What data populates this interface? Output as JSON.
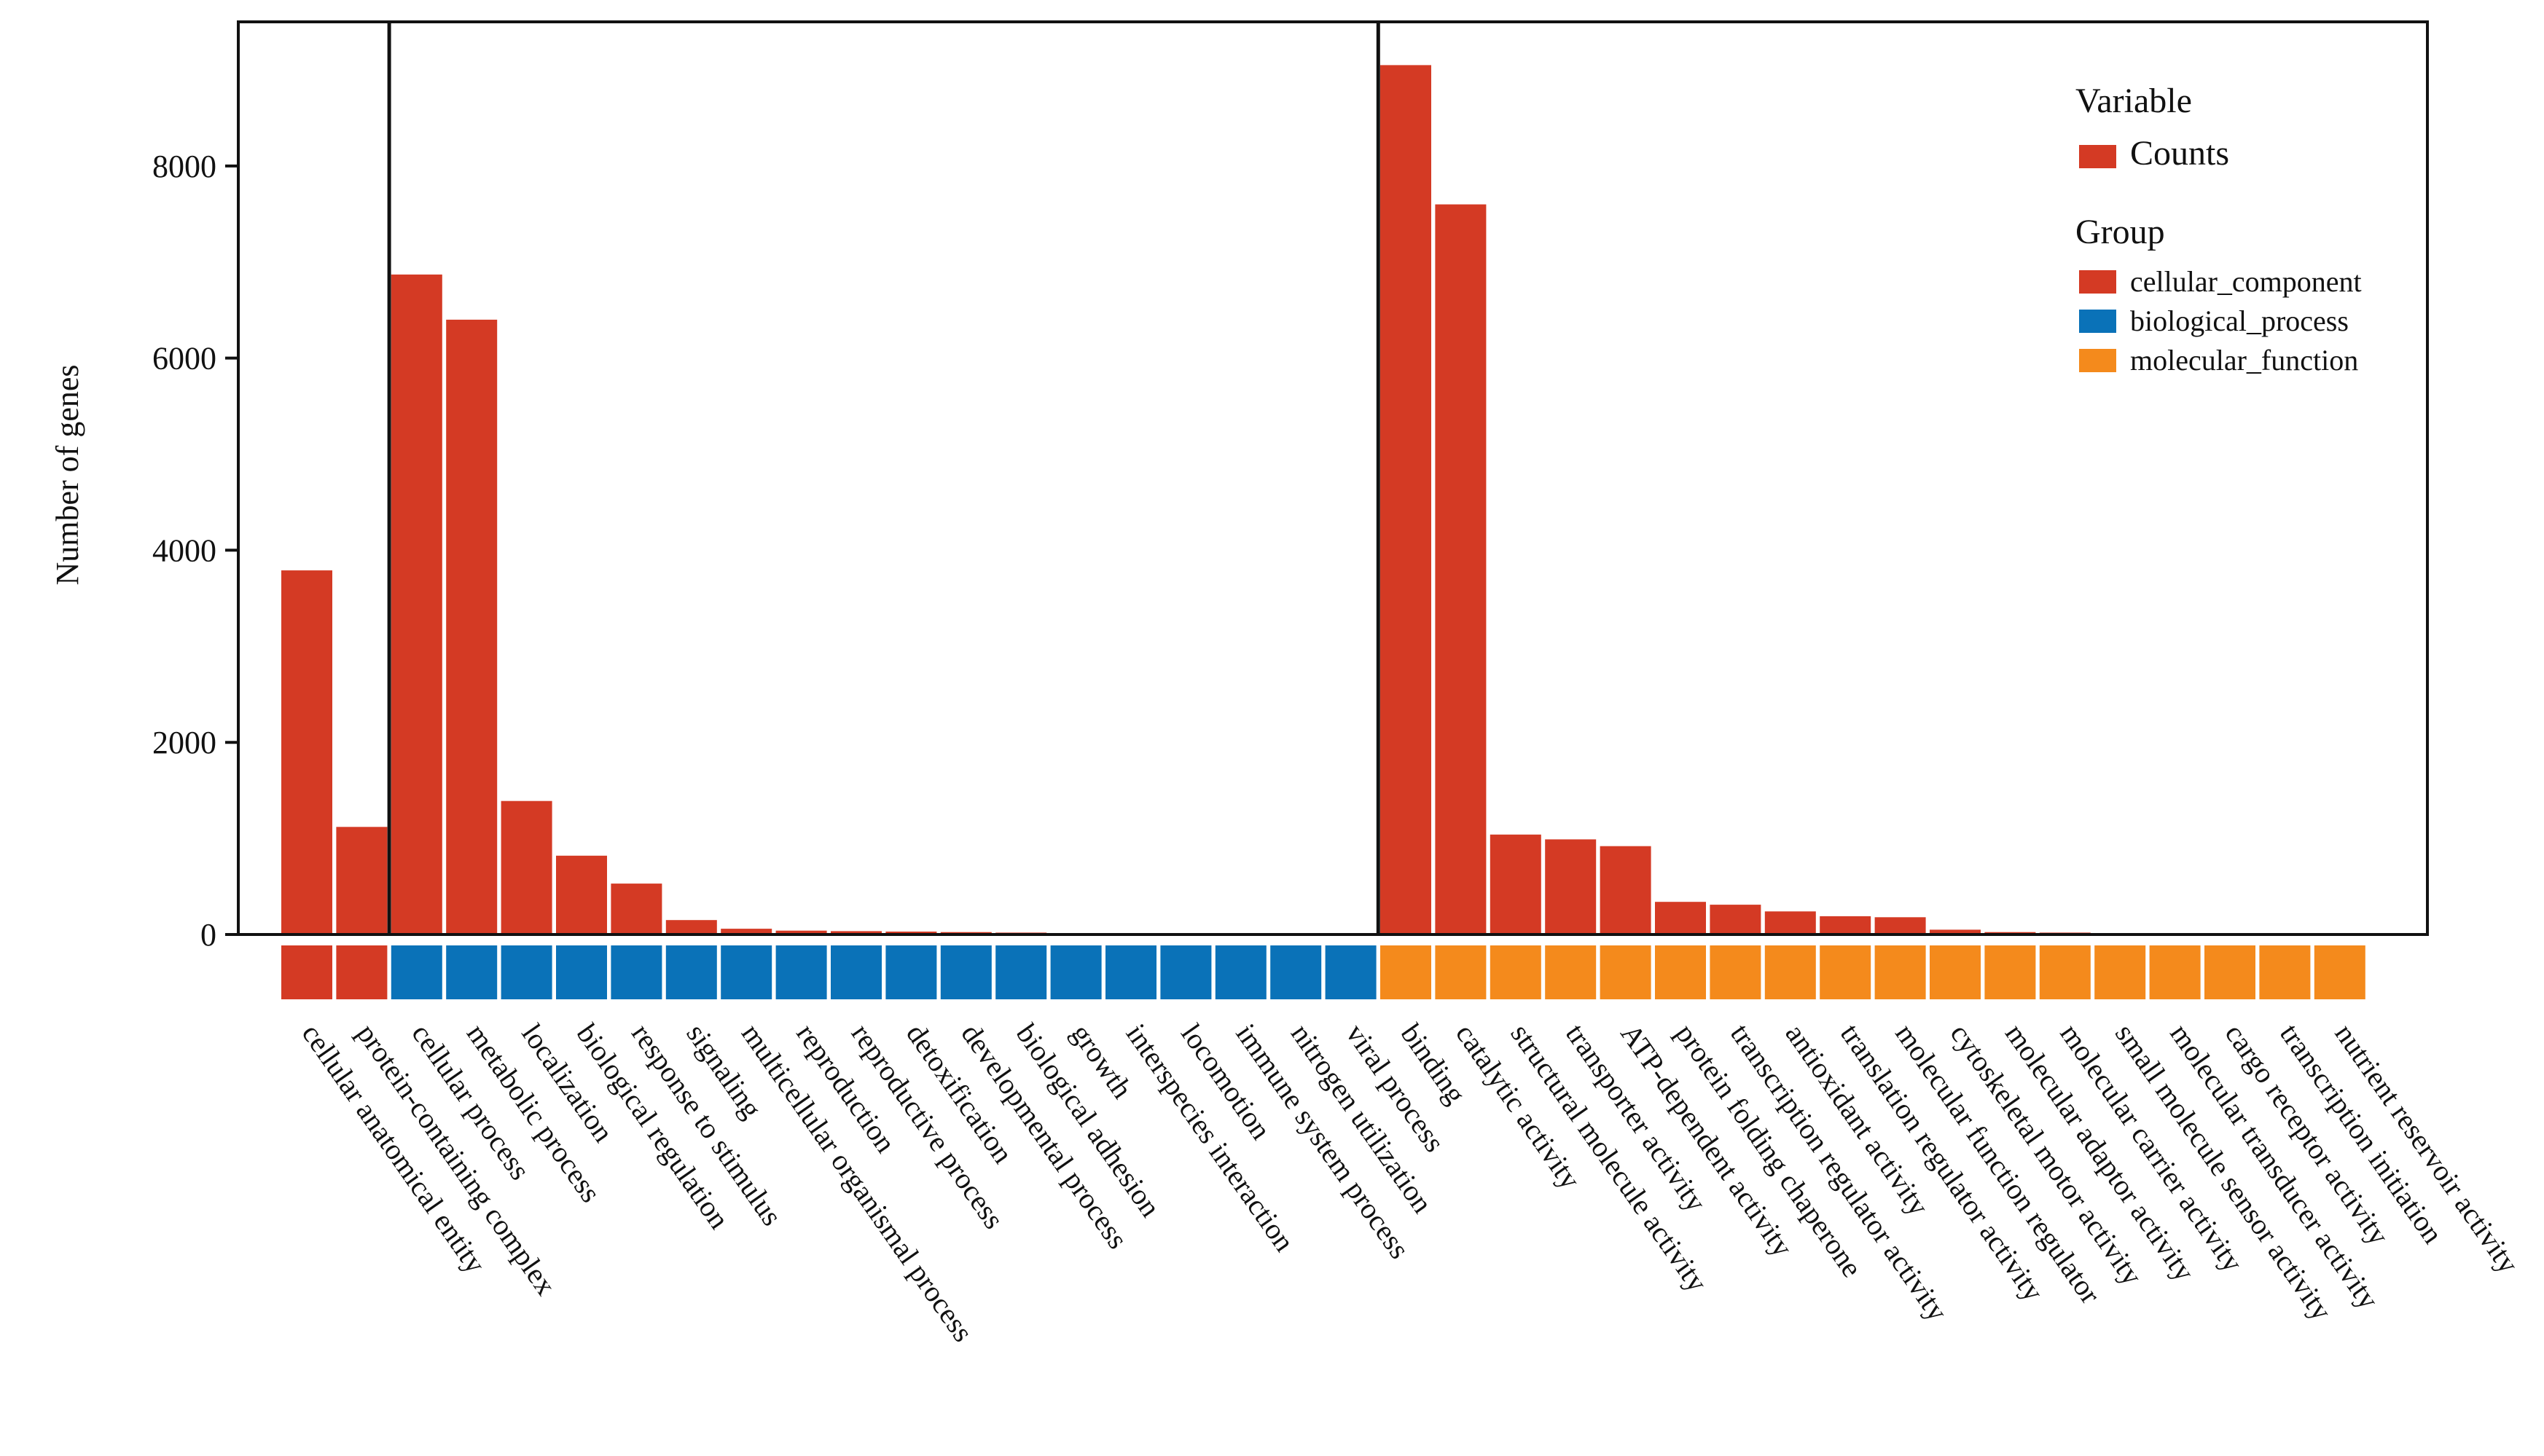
{
  "chart_data": {
    "type": "bar",
    "ylabel": "Number of genes",
    "xlabel": "",
    "ylim": [
      0,
      9500
    ],
    "yticks": [
      0,
      2000,
      4000,
      6000,
      8000
    ],
    "grid": false,
    "legend_position": "top-right",
    "legend": {
      "variable_title": "Variable",
      "variable_items": [
        {
          "label": "Counts",
          "color": "#D43A24"
        }
      ],
      "group_title": "Group",
      "group_items": [
        {
          "label": "cellular_component",
          "color": "#D43A24"
        },
        {
          "label": "biological_process",
          "color": "#0A72B8"
        },
        {
          "label": "molecular_function",
          "color": "#F48A1C"
        }
      ]
    },
    "bar_color": "#D43A24",
    "group_colors": {
      "cellular_component": "#D43A24",
      "biological_process": "#0A72B8",
      "molecular_function": "#F48A1C"
    },
    "categories": [
      "cellular anatomical entity",
      "protein-containing complex",
      "cellular process",
      "metabolic process",
      "localization",
      "biological regulation",
      "response to stimulus",
      "signaling",
      "multicellular organismal process",
      "reproduction",
      "reproductive process",
      "detoxification",
      "developmental process",
      "biological adhesion",
      "growth",
      "interspecies interaction",
      "locomotion",
      "immune system process",
      "nitrogen utilization",
      "viral process",
      "binding",
      "catalytic activity",
      "structural molecule activity",
      "transporter activity",
      "ATP-dependent activity",
      "protein folding chaperone",
      "transcription regulator activity",
      "antioxidant activity",
      "translation regulator activity",
      "molecular function regulator",
      "cytoskeletal motor activity",
      "molecular adaptor activity",
      "molecular carrier activity",
      "small molecule sensor activity",
      "molecular transducer activity",
      "cargo receptor activity",
      "transcription initiation",
      "nutrient reservoir activity"
    ],
    "groups": [
      "cellular_component",
      "cellular_component",
      "biological_process",
      "biological_process",
      "biological_process",
      "biological_process",
      "biological_process",
      "biological_process",
      "biological_process",
      "biological_process",
      "biological_process",
      "biological_process",
      "biological_process",
      "biological_process",
      "biological_process",
      "biological_process",
      "biological_process",
      "biological_process",
      "biological_process",
      "biological_process",
      "molecular_function",
      "molecular_function",
      "molecular_function",
      "molecular_function",
      "molecular_function",
      "molecular_function",
      "molecular_function",
      "molecular_function",
      "molecular_function",
      "molecular_function",
      "molecular_function",
      "molecular_function",
      "molecular_function",
      "molecular_function",
      "molecular_function",
      "molecular_function",
      "molecular_function",
      "molecular_function"
    ],
    "values": [
      3790,
      1120,
      6870,
      6400,
      1390,
      820,
      530,
      150,
      60,
      40,
      35,
      30,
      25,
      20,
      15,
      8,
      6,
      5,
      3,
      2,
      9050,
      7600,
      1040,
      990,
      920,
      340,
      310,
      240,
      190,
      180,
      50,
      25,
      20,
      8,
      6,
      4,
      3,
      2
    ],
    "separators_after_index": [
      1,
      19
    ]
  }
}
